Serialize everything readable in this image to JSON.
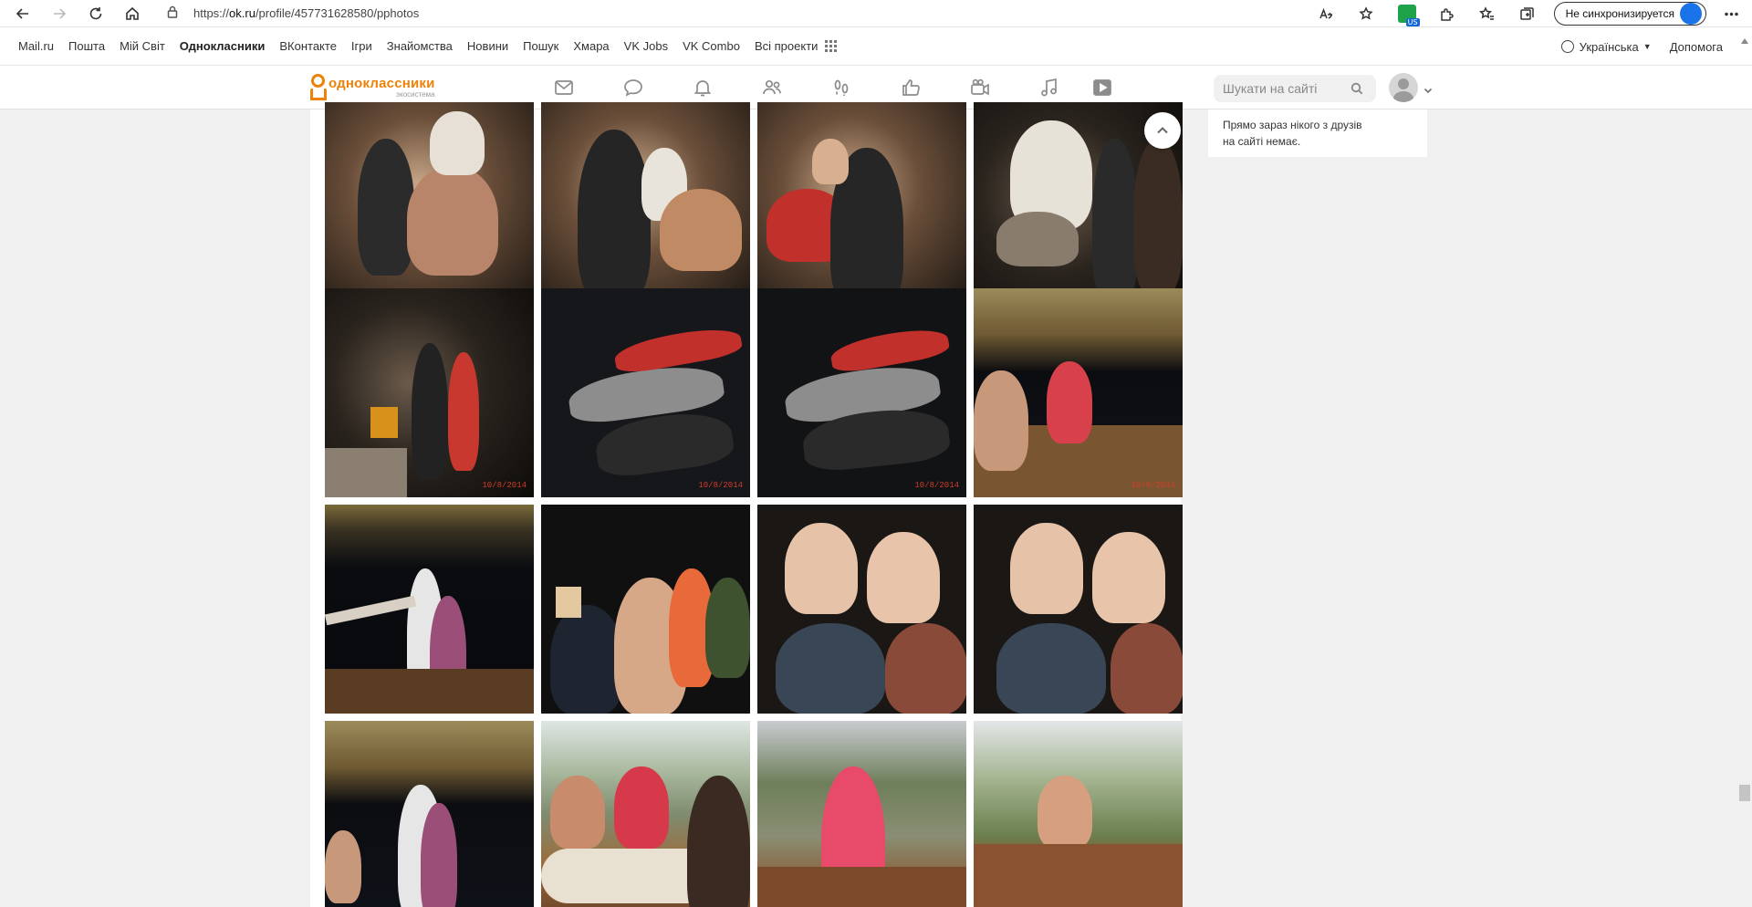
{
  "browser": {
    "url_prefix": "https://",
    "url_domain": "ok.ru",
    "url_path": "/profile/457731628580/pphotos",
    "sync_label": "Не синхронизируется",
    "extension_badge": "US"
  },
  "portal": {
    "links": [
      "Mail.ru",
      "Пошта",
      "Мій Світ",
      "Однокласники",
      "ВКонтакте",
      "Ігри",
      "Знайомства",
      "Новини",
      "Пошук",
      "Хмара",
      "VK Jobs",
      "VK Combo",
      "Всі проекти"
    ],
    "active": "Однокласники",
    "language": "Українська",
    "help": "Допомога"
  },
  "ok": {
    "logo_title": "одноклассники",
    "logo_sub": "экосистема",
    "search_placeholder": "Шукати на сайті",
    "nav_icons": [
      "envelope-icon",
      "chat-icon",
      "bell-icon",
      "friends-icon",
      "guests-icon",
      "like-icon",
      "camera-icon",
      "music-icon",
      "video-icon"
    ]
  },
  "sidebar": {
    "friends_online_text_1": "Прямо зараз нікого з друзів",
    "friends_online_text_2": "на сайті немає."
  },
  "photos": {
    "date_label": "10/8/2014"
  }
}
